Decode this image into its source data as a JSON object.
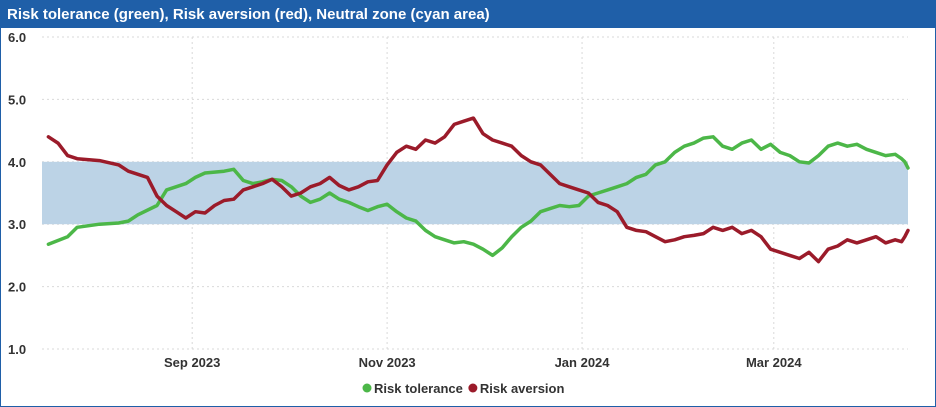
{
  "chart_data": {
    "type": "line",
    "title": "Risk tolerance (green), Risk aversion (red), Neutral zone (cyan area)",
    "ylim": [
      1.0,
      6.0
    ],
    "yticks": [
      "1.0",
      "2.0",
      "3.0",
      "4.0",
      "5.0",
      "6.0"
    ],
    "xlim": [
      "2023-07-16",
      "2024-04-12"
    ],
    "xticks": [
      {
        "date": "2023-09-01",
        "label": "Sep 2023"
      },
      {
        "date": "2023-11-01",
        "label": "Nov 2023"
      },
      {
        "date": "2024-01-01",
        "label": "Jan 2024"
      },
      {
        "date": "2024-03-01",
        "label": "Mar 2024"
      }
    ],
    "grid": true,
    "legend_position": "bottom",
    "neutral_zone": {
      "low": 3.0,
      "high": 4.0,
      "color": "#bcd3e6"
    },
    "series": [
      {
        "name": "Risk tolerance",
        "color": "#4cb748",
        "points": [
          [
            "2023-07-18",
            2.68
          ],
          [
            "2023-07-24",
            2.8
          ],
          [
            "2023-07-27",
            2.95
          ],
          [
            "2023-08-03",
            3.0
          ],
          [
            "2023-08-09",
            3.02
          ],
          [
            "2023-08-12",
            3.05
          ],
          [
            "2023-08-15",
            3.15
          ],
          [
            "2023-08-21",
            3.3
          ],
          [
            "2023-08-24",
            3.55
          ],
          [
            "2023-08-30",
            3.65
          ],
          [
            "2023-09-02",
            3.75
          ],
          [
            "2023-09-05",
            3.82
          ],
          [
            "2023-09-11",
            3.85
          ],
          [
            "2023-09-14",
            3.88
          ],
          [
            "2023-09-17",
            3.7
          ],
          [
            "2023-09-20",
            3.65
          ],
          [
            "2023-09-23",
            3.68
          ],
          [
            "2023-09-26",
            3.72
          ],
          [
            "2023-09-29",
            3.7
          ],
          [
            "2023-10-02",
            3.6
          ],
          [
            "2023-10-05",
            3.45
          ],
          [
            "2023-10-08",
            3.35
          ],
          [
            "2023-10-11",
            3.4
          ],
          [
            "2023-10-14",
            3.5
          ],
          [
            "2023-10-17",
            3.4
          ],
          [
            "2023-10-20",
            3.35
          ],
          [
            "2023-10-23",
            3.28
          ],
          [
            "2023-10-26",
            3.22
          ],
          [
            "2023-10-29",
            3.28
          ],
          [
            "2023-11-01",
            3.32
          ],
          [
            "2023-11-04",
            3.2
          ],
          [
            "2023-11-07",
            3.1
          ],
          [
            "2023-11-10",
            3.05
          ],
          [
            "2023-11-13",
            2.9
          ],
          [
            "2023-11-16",
            2.8
          ],
          [
            "2023-11-19",
            2.75
          ],
          [
            "2023-11-22",
            2.7
          ],
          [
            "2023-11-25",
            2.72
          ],
          [
            "2023-11-28",
            2.68
          ],
          [
            "2023-12-01",
            2.6
          ],
          [
            "2023-12-04",
            2.5
          ],
          [
            "2023-12-07",
            2.62
          ],
          [
            "2023-12-10",
            2.8
          ],
          [
            "2023-12-13",
            2.95
          ],
          [
            "2023-12-16",
            3.05
          ],
          [
            "2023-12-19",
            3.2
          ],
          [
            "2023-12-22",
            3.25
          ],
          [
            "2023-12-25",
            3.3
          ],
          [
            "2023-12-28",
            3.28
          ],
          [
            "2023-12-31",
            3.3
          ],
          [
            "2024-01-03",
            3.45
          ],
          [
            "2024-01-06",
            3.5
          ],
          [
            "2024-01-09",
            3.55
          ],
          [
            "2024-01-12",
            3.6
          ],
          [
            "2024-01-15",
            3.65
          ],
          [
            "2024-01-18",
            3.75
          ],
          [
            "2024-01-21",
            3.8
          ],
          [
            "2024-01-24",
            3.95
          ],
          [
            "2024-01-27",
            4.0
          ],
          [
            "2024-01-30",
            4.15
          ],
          [
            "2024-02-02",
            4.25
          ],
          [
            "2024-02-05",
            4.3
          ],
          [
            "2024-02-08",
            4.38
          ],
          [
            "2024-02-11",
            4.4
          ],
          [
            "2024-02-14",
            4.25
          ],
          [
            "2024-02-17",
            4.2
          ],
          [
            "2024-02-20",
            4.3
          ],
          [
            "2024-02-23",
            4.35
          ],
          [
            "2024-02-26",
            4.2
          ],
          [
            "2024-02-29",
            4.28
          ],
          [
            "2024-03-03",
            4.15
          ],
          [
            "2024-03-06",
            4.1
          ],
          [
            "2024-03-09",
            4.0
          ],
          [
            "2024-03-12",
            3.98
          ],
          [
            "2024-03-15",
            4.1
          ],
          [
            "2024-03-18",
            4.25
          ],
          [
            "2024-03-21",
            4.3
          ],
          [
            "2024-03-24",
            4.25
          ],
          [
            "2024-03-27",
            4.28
          ],
          [
            "2024-03-30",
            4.2
          ],
          [
            "2024-04-02",
            4.15
          ],
          [
            "2024-04-05",
            4.1
          ],
          [
            "2024-04-08",
            4.12
          ],
          [
            "2024-04-10",
            4.05
          ],
          [
            "2024-04-11",
            4.0
          ],
          [
            "2024-04-12",
            3.9
          ]
        ]
      },
      {
        "name": "Risk aversion",
        "color": "#9b1b2a",
        "points": [
          [
            "2023-07-18",
            4.4
          ],
          [
            "2023-07-21",
            4.3
          ],
          [
            "2023-07-24",
            4.1
          ],
          [
            "2023-07-27",
            4.05
          ],
          [
            "2023-08-03",
            4.02
          ],
          [
            "2023-08-09",
            3.95
          ],
          [
            "2023-08-12",
            3.85
          ],
          [
            "2023-08-15",
            3.8
          ],
          [
            "2023-08-18",
            3.75
          ],
          [
            "2023-08-21",
            3.45
          ],
          [
            "2023-08-24",
            3.3
          ],
          [
            "2023-08-27",
            3.2
          ],
          [
            "2023-08-30",
            3.1
          ],
          [
            "2023-09-02",
            3.2
          ],
          [
            "2023-09-05",
            3.18
          ],
          [
            "2023-09-08",
            3.3
          ],
          [
            "2023-09-11",
            3.38
          ],
          [
            "2023-09-14",
            3.4
          ],
          [
            "2023-09-17",
            3.55
          ],
          [
            "2023-09-20",
            3.6
          ],
          [
            "2023-09-23",
            3.65
          ],
          [
            "2023-09-26",
            3.72
          ],
          [
            "2023-09-29",
            3.6
          ],
          [
            "2023-10-02",
            3.45
          ],
          [
            "2023-10-05",
            3.5
          ],
          [
            "2023-10-08",
            3.6
          ],
          [
            "2023-10-11",
            3.65
          ],
          [
            "2023-10-14",
            3.75
          ],
          [
            "2023-10-17",
            3.62
          ],
          [
            "2023-10-20",
            3.55
          ],
          [
            "2023-10-23",
            3.6
          ],
          [
            "2023-10-26",
            3.68
          ],
          [
            "2023-10-29",
            3.7
          ],
          [
            "2023-11-01",
            3.95
          ],
          [
            "2023-11-04",
            4.15
          ],
          [
            "2023-11-07",
            4.25
          ],
          [
            "2023-11-10",
            4.2
          ],
          [
            "2023-11-13",
            4.35
          ],
          [
            "2023-11-16",
            4.3
          ],
          [
            "2023-11-19",
            4.4
          ],
          [
            "2023-11-22",
            4.6
          ],
          [
            "2023-11-25",
            4.65
          ],
          [
            "2023-11-28",
            4.7
          ],
          [
            "2023-12-01",
            4.45
          ],
          [
            "2023-12-04",
            4.35
          ],
          [
            "2023-12-07",
            4.3
          ],
          [
            "2023-12-10",
            4.25
          ],
          [
            "2023-12-13",
            4.1
          ],
          [
            "2023-12-16",
            4.0
          ],
          [
            "2023-12-19",
            3.95
          ],
          [
            "2023-12-22",
            3.8
          ],
          [
            "2023-12-25",
            3.65
          ],
          [
            "2023-12-28",
            3.6
          ],
          [
            "2023-12-31",
            3.55
          ],
          [
            "2024-01-03",
            3.5
          ],
          [
            "2024-01-06",
            3.35
          ],
          [
            "2024-01-09",
            3.3
          ],
          [
            "2024-01-12",
            3.2
          ],
          [
            "2024-01-15",
            2.95
          ],
          [
            "2024-01-18",
            2.9
          ],
          [
            "2024-01-21",
            2.88
          ],
          [
            "2024-01-24",
            2.8
          ],
          [
            "2024-01-27",
            2.72
          ],
          [
            "2024-01-30",
            2.75
          ],
          [
            "2024-02-02",
            2.8
          ],
          [
            "2024-02-05",
            2.82
          ],
          [
            "2024-02-08",
            2.85
          ],
          [
            "2024-02-11",
            2.95
          ],
          [
            "2024-02-14",
            2.9
          ],
          [
            "2024-02-17",
            2.95
          ],
          [
            "2024-02-20",
            2.85
          ],
          [
            "2024-02-23",
            2.9
          ],
          [
            "2024-02-26",
            2.8
          ],
          [
            "2024-02-29",
            2.6
          ],
          [
            "2024-03-03",
            2.55
          ],
          [
            "2024-03-06",
            2.5
          ],
          [
            "2024-03-09",
            2.45
          ],
          [
            "2024-03-12",
            2.55
          ],
          [
            "2024-03-15",
            2.4
          ],
          [
            "2024-03-18",
            2.6
          ],
          [
            "2024-03-21",
            2.65
          ],
          [
            "2024-03-24",
            2.75
          ],
          [
            "2024-03-27",
            2.7
          ],
          [
            "2024-03-30",
            2.75
          ],
          [
            "2024-04-02",
            2.8
          ],
          [
            "2024-04-05",
            2.7
          ],
          [
            "2024-04-08",
            2.75
          ],
          [
            "2024-04-10",
            2.72
          ],
          [
            "2024-04-11",
            2.8
          ],
          [
            "2024-04-12",
            2.9
          ]
        ]
      }
    ]
  }
}
